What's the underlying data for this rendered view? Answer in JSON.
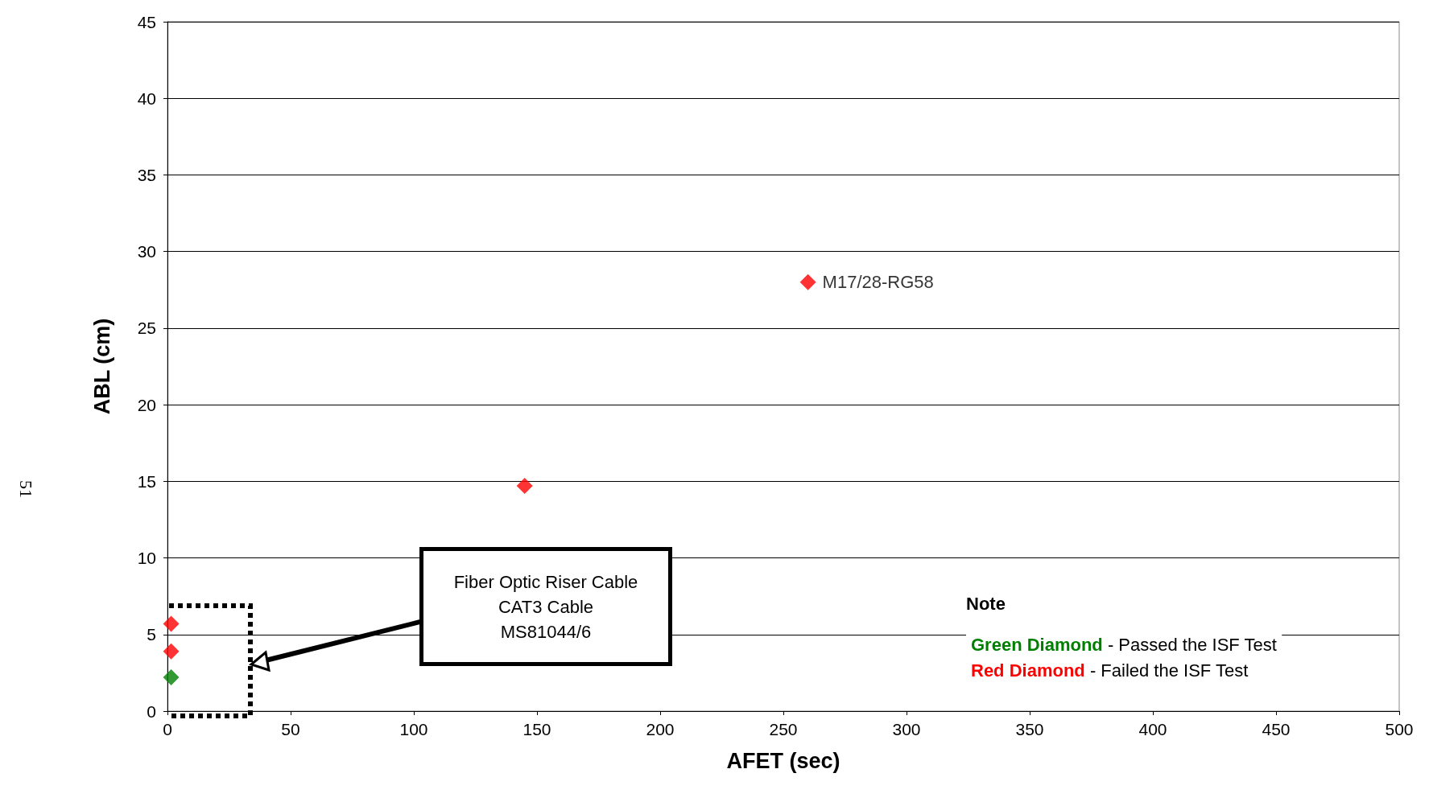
{
  "chart_data": {
    "type": "scatter",
    "xlabel": "AFET (sec)",
    "ylabel": "ABL (cm)",
    "xlim": [
      0,
      500
    ],
    "xticks": [
      0,
      50,
      100,
      150,
      200,
      250,
      300,
      350,
      400,
      450,
      500
    ],
    "ylim": [
      0,
      45
    ],
    "yticks": [
      0,
      5,
      10,
      15,
      20,
      25,
      30,
      35,
      40,
      45
    ],
    "grid": "y",
    "marker": "diamond",
    "series": [
      {
        "color": "#008000",
        "x": [
          1.5
        ],
        "values": [
          2.2
        ]
      },
      {
        "color": "#ff0000",
        "x": [
          1.5,
          1.5,
          145,
          260
        ],
        "values": [
          5.7,
          3.9,
          14.7,
          28
        ]
      }
    ],
    "annotations": [
      {
        "text": "M17/28-RG58",
        "x": 260,
        "y": 28
      },
      "Fiber Optic Riser Cable\nCAT3 Cable\nMS81044/6",
      "Note",
      "Green Diamond",
      " - Passed the ISF Test",
      "Red Diamond",
      " - Failed the ISF Test",
      "51"
    ]
  }
}
